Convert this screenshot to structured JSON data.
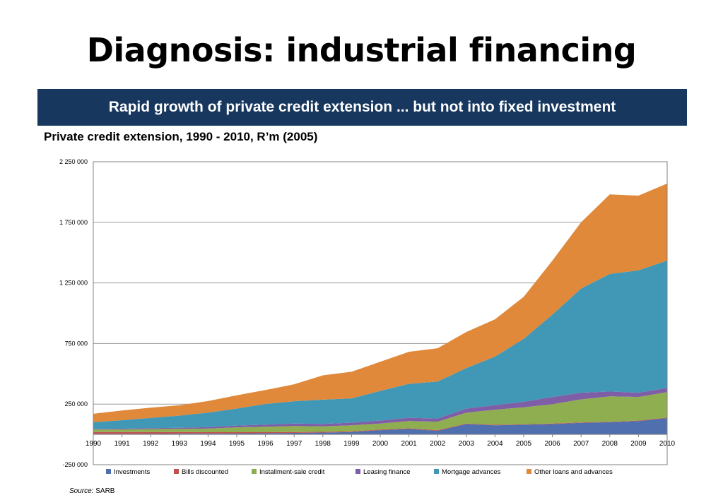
{
  "slide": {
    "title": "Diagnosis: industrial financing",
    "banner": "Rapid growth of private credit extension ... but not into fixed investment"
  },
  "source": {
    "label": "Source:",
    "value": "SARB"
  },
  "chart_data": {
    "type": "area",
    "stacked": true,
    "title": "Private credit extension, 1990 - 2010, R’m (2005)",
    "xlabel": "",
    "ylabel": "",
    "ylim": [
      -250000,
      2250000
    ],
    "yticks": [
      -250000,
      250000,
      750000,
      1250000,
      1750000,
      2250000
    ],
    "ytick_labels": [
      "-250 000",
      "250 000",
      "750 000",
      "1 250 000",
      "1 750 000",
      "2 250 000"
    ],
    "grid": true,
    "legend_position": "bottom",
    "x": [
      "1990",
      "1991",
      "1992",
      "1993",
      "1994",
      "1995",
      "1996",
      "1997",
      "1998",
      "1999",
      "2000",
      "2001",
      "2002",
      "2003",
      "2004",
      "2005",
      "2006",
      "2007",
      "2008",
      "2009",
      "2010"
    ],
    "series": [
      {
        "name": "Investments",
        "color": "#4f6fae",
        "values": [
          5000,
          5000,
          6000,
          7000,
          8000,
          9000,
          10000,
          12000,
          15000,
          20000,
          35000,
          45000,
          30000,
          85000,
          75000,
          80000,
          85000,
          95000,
          100000,
          110000,
          135000
        ]
      },
      {
        "name": "Bills discounted",
        "color": "#c0504d",
        "values": [
          15000,
          14000,
          13000,
          12000,
          10000,
          9000,
          8000,
          7000,
          6000,
          5000,
          5000,
          5000,
          5000,
          4000,
          4000,
          4000,
          4000,
          4000,
          4000,
          4000,
          4000
        ]
      },
      {
        "name": "Installment-sale  credit",
        "color": "#8fae4f",
        "values": [
          20000,
          22000,
          25000,
          27000,
          30000,
          40000,
          45000,
          50000,
          45000,
          50000,
          50000,
          60000,
          70000,
          90000,
          125000,
          140000,
          160000,
          190000,
          210000,
          195000,
          210000
        ]
      },
      {
        "name": "Leasing finance",
        "color": "#7f5ea8",
        "values": [
          5000,
          6000,
          7000,
          9000,
          12000,
          15000,
          18000,
          20000,
          21000,
          22000,
          24000,
          27000,
          26000,
          34000,
          38000,
          45000,
          60000,
          55000,
          40000,
          35000,
          35000
        ]
      },
      {
        "name": "Mortgage advances",
        "color": "#4198b6",
        "values": [
          55000,
          70000,
          85000,
          100000,
          120000,
          140000,
          170000,
          185000,
          200000,
          200000,
          245000,
          280000,
          305000,
          335000,
          400000,
          520000,
          680000,
          860000,
          970000,
          1010000,
          1050000
        ]
      },
      {
        "name": "Other loans and advances",
        "color": "#e0893a",
        "values": [
          70000,
          80000,
          85000,
          85000,
          95000,
          110000,
          115000,
          140000,
          200000,
          220000,
          240000,
          265000,
          275000,
          297000,
          308000,
          346000,
          445000,
          546000,
          656000,
          616000,
          636000
        ]
      }
    ]
  }
}
